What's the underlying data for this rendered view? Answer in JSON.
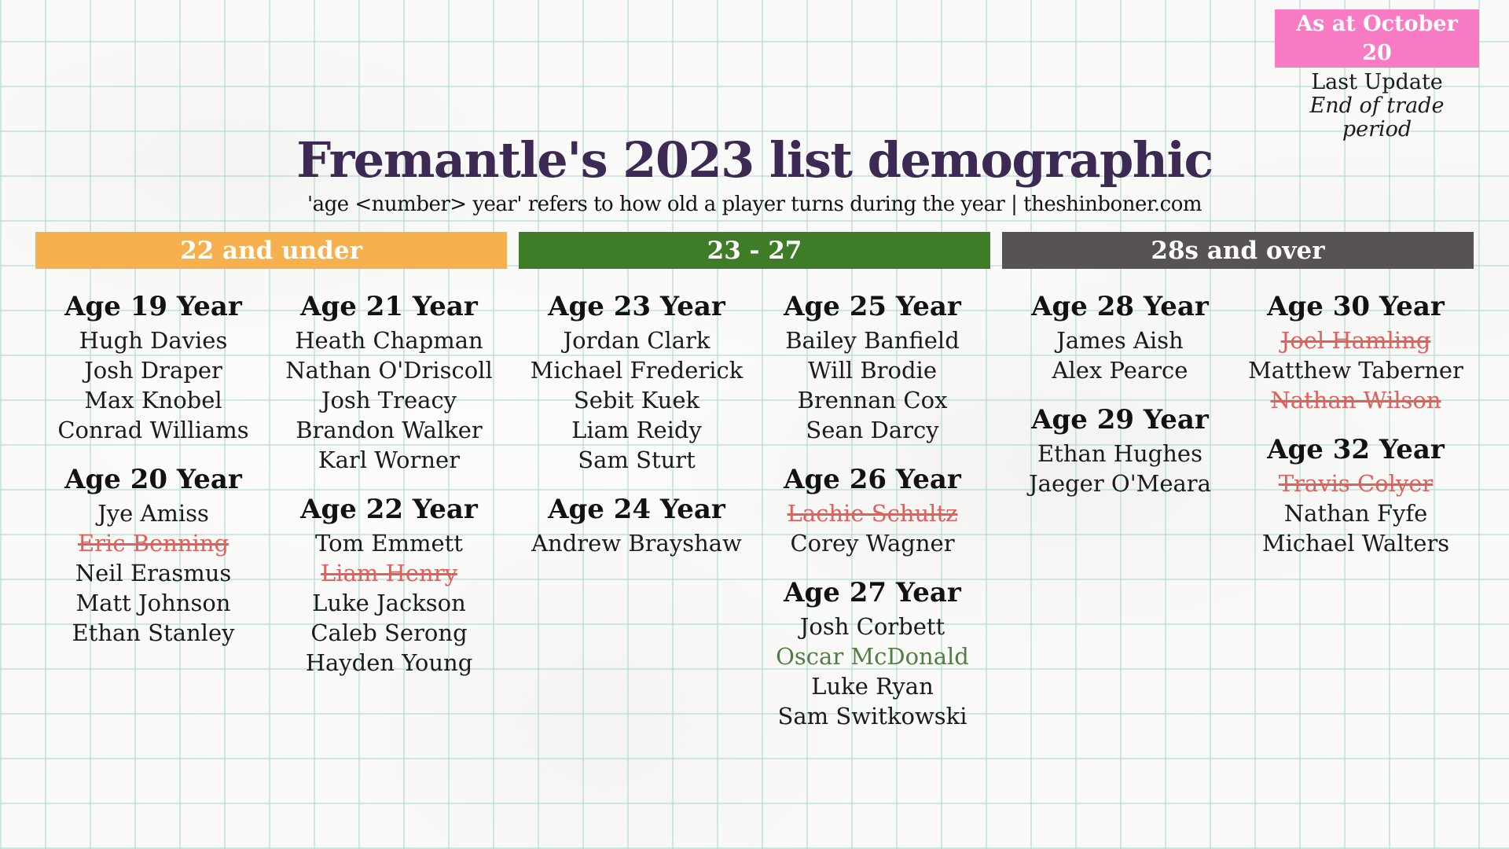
{
  "update_info": {
    "badge": "As at October 20",
    "line1": "Last Update",
    "line2": "End of trade period"
  },
  "header": {
    "title": "Fremantle's 2023 list demographic",
    "subtitle": "'age <number> year' refers to how old a player turns during the year | theshinboner.com"
  },
  "groups": [
    {
      "label": "22 and under",
      "color": "#f6b04e"
    },
    {
      "label": "23 - 27",
      "color": "#3e7c28"
    },
    {
      "label": "28s and over",
      "color": "#575352"
    }
  ],
  "columns": [
    {
      "group_index": 0,
      "sections": [
        {
          "age_label": "Age 19 Year",
          "players": [
            {
              "name": "Hugh Davies"
            },
            {
              "name": "Josh Draper"
            },
            {
              "name": "Max Knobel"
            },
            {
              "name": "Conrad Williams"
            }
          ]
        },
        {
          "age_label": "Age 20 Year",
          "players": [
            {
              "name": "Jye Amiss"
            },
            {
              "name": "Eric Benning",
              "status": "struck"
            },
            {
              "name": "Neil Erasmus"
            },
            {
              "name": "Matt Johnson"
            },
            {
              "name": "Ethan Stanley"
            }
          ]
        }
      ]
    },
    {
      "group_index": 0,
      "sections": [
        {
          "age_label": "Age 21 Year",
          "players": [
            {
              "name": "Heath Chapman"
            },
            {
              "name": "Nathan O'Driscoll"
            },
            {
              "name": "Josh Treacy"
            },
            {
              "name": "Brandon Walker"
            },
            {
              "name": "Karl Worner"
            }
          ]
        },
        {
          "age_label": "Age 22 Year",
          "players": [
            {
              "name": "Tom Emmett"
            },
            {
              "name": "Liam Henry",
              "status": "struck"
            },
            {
              "name": "Luke Jackson"
            },
            {
              "name": "Caleb Serong"
            },
            {
              "name": "Hayden Young"
            }
          ]
        }
      ]
    },
    {
      "group_index": 1,
      "sections": [
        {
          "age_label": "Age 23 Year",
          "players": [
            {
              "name": "Jordan Clark"
            },
            {
              "name": "Michael Frederick"
            },
            {
              "name": "Sebit Kuek"
            },
            {
              "name": "Liam Reidy"
            },
            {
              "name": "Sam Sturt"
            }
          ]
        },
        {
          "age_label": "Age 24 Year",
          "players": [
            {
              "name": "Andrew Brayshaw"
            }
          ]
        }
      ]
    },
    {
      "group_index": 1,
      "sections": [
        {
          "age_label": "Age 25 Year",
          "players": [
            {
              "name": "Bailey Banfield"
            },
            {
              "name": "Will Brodie"
            },
            {
              "name": "Brennan Cox"
            },
            {
              "name": "Sean Darcy"
            }
          ]
        },
        {
          "age_label": "Age 26 Year",
          "players": [
            {
              "name": "Lachie Schultz",
              "status": "struck"
            },
            {
              "name": "Corey Wagner"
            }
          ]
        },
        {
          "age_label": "Age 27 Year",
          "players": [
            {
              "name": "Josh Corbett"
            },
            {
              "name": "Oscar McDonald",
              "status": "green"
            },
            {
              "name": "Luke Ryan"
            },
            {
              "name": "Sam Switkowski"
            }
          ]
        }
      ]
    },
    {
      "group_index": 2,
      "sections": [
        {
          "age_label": "Age 28 Year",
          "players": [
            {
              "name": "James Aish"
            },
            {
              "name": "Alex Pearce"
            }
          ]
        },
        {
          "age_label": "Age 29 Year",
          "players": [
            {
              "name": "Ethan Hughes"
            },
            {
              "name": "Jaeger O'Meara"
            }
          ]
        }
      ]
    },
    {
      "group_index": 2,
      "sections": [
        {
          "age_label": "Age 30 Year",
          "players": [
            {
              "name": "Joel Hamling",
              "status": "struck"
            },
            {
              "name": "Matthew Taberner"
            },
            {
              "name": "Nathan Wilson",
              "status": "struck"
            }
          ]
        },
        {
          "age_label": "Age 32 Year",
          "players": [
            {
              "name": "Travis Colyer",
              "status": "struck"
            },
            {
              "name": "Nathan Fyfe"
            },
            {
              "name": "Michael Walters"
            }
          ]
        }
      ]
    }
  ],
  "colors": {
    "badge_pink": "#f87bc3",
    "title_purple": "#3c2a54",
    "struck_red": "#e0605c",
    "highlight_green": "#517d42",
    "bar_orange": "#f6b04e",
    "bar_green": "#3e7c28",
    "bar_gray": "#575352",
    "grid_line": "#acd8cd",
    "paper": "#fafaf8"
  }
}
